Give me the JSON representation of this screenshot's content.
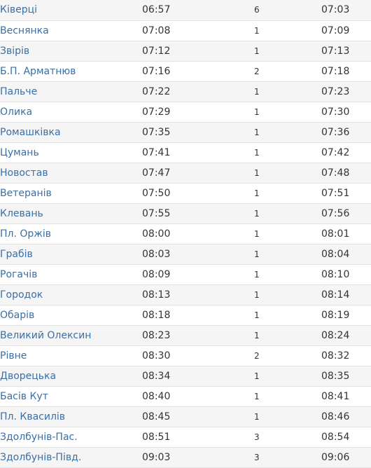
{
  "schedule": {
    "rows": [
      {
        "station": "Ківерці",
        "arrival": "06:57",
        "stop_min": "6",
        "departure": "07:03"
      },
      {
        "station": "Веснянка",
        "arrival": "07:08",
        "stop_min": "1",
        "departure": "07:09"
      },
      {
        "station": "Звірів",
        "arrival": "07:12",
        "stop_min": "1",
        "departure": "07:13"
      },
      {
        "station": "Б.П. Арматнюв",
        "arrival": "07:16",
        "stop_min": "2",
        "departure": "07:18"
      },
      {
        "station": "Пальче",
        "arrival": "07:22",
        "stop_min": "1",
        "departure": "07:23"
      },
      {
        "station": "Олика",
        "arrival": "07:29",
        "stop_min": "1",
        "departure": "07:30"
      },
      {
        "station": "Ромашківка",
        "arrival": "07:35",
        "stop_min": "1",
        "departure": "07:36"
      },
      {
        "station": "Цумань",
        "arrival": "07:41",
        "stop_min": "1",
        "departure": "07:42"
      },
      {
        "station": "Новостав",
        "arrival": "07:47",
        "stop_min": "1",
        "departure": "07:48"
      },
      {
        "station": "Ветеранів",
        "arrival": "07:50",
        "stop_min": "1",
        "departure": "07:51"
      },
      {
        "station": "Клевань",
        "arrival": "07:55",
        "stop_min": "1",
        "departure": "07:56"
      },
      {
        "station": "Пл. Оржів",
        "arrival": "08:00",
        "stop_min": "1",
        "departure": "08:01"
      },
      {
        "station": "Грабів",
        "arrival": "08:03",
        "stop_min": "1",
        "departure": "08:04"
      },
      {
        "station": "Рогачів",
        "arrival": "08:09",
        "stop_min": "1",
        "departure": "08:10"
      },
      {
        "station": "Городок",
        "arrival": "08:13",
        "stop_min": "1",
        "departure": "08:14"
      },
      {
        "station": "Обарів",
        "arrival": "08:18",
        "stop_min": "1",
        "departure": "08:19"
      },
      {
        "station": "Великий Олексин",
        "arrival": "08:23",
        "stop_min": "1",
        "departure": "08:24"
      },
      {
        "station": "Рівне",
        "arrival": "08:30",
        "stop_min": "2",
        "departure": "08:32"
      },
      {
        "station": "Дворецька",
        "arrival": "08:34",
        "stop_min": "1",
        "departure": "08:35"
      },
      {
        "station": "Басів Кут",
        "arrival": "08:40",
        "stop_min": "1",
        "departure": "08:41"
      },
      {
        "station": "Пл. Квасилів",
        "arrival": "08:45",
        "stop_min": "1",
        "departure": "08:46"
      },
      {
        "station": "Здолбунів-Пас.",
        "arrival": "08:51",
        "stop_min": "3",
        "departure": "08:54"
      },
      {
        "station": "Здолбунів-Півд.",
        "arrival": "09:03",
        "stop_min": "3",
        "departure": "09:06"
      }
    ]
  },
  "colors": {
    "link": "#3a6fa6",
    "text": "#333333",
    "row_stripe": "#f5f5f5",
    "row_border": "#e2e2e2"
  }
}
